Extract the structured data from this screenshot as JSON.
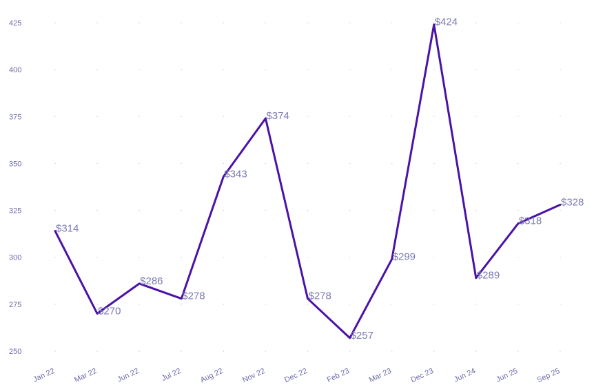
{
  "chart_data": {
    "type": "line",
    "title": "",
    "xlabel": "",
    "ylabel": "",
    "categories": [
      "Jan 22",
      "Mar 22",
      "Jun 22",
      "Jul 22",
      "Aug 22",
      "Nov 22",
      "Dec 22",
      "Feb 23",
      "Mar 23",
      "Dec 23",
      "Jun 24",
      "Jun 25",
      "Sep 25"
    ],
    "series": [
      {
        "values": [
          314,
          270,
          286,
          278,
          343,
          374,
          278,
          257,
          299,
          424,
          289,
          318,
          328
        ]
      }
    ],
    "data_labels": [
      "$314",
      "$270",
      "$286",
      "$278",
      "$343",
      "$374",
      "$278",
      "$257",
      "$299",
      "$424",
      "$289",
      "$318",
      "$328"
    ],
    "yticks": [
      "250",
      "275",
      "300",
      "325",
      "350",
      "375",
      "400",
      "425"
    ],
    "ylim": [
      250,
      425
    ],
    "grid": "dotted",
    "legend": "none",
    "colors": {
      "line": "#4a12a6",
      "labels": "#7a7ab4",
      "ticks": "#6a6aa8",
      "grid": "#d4d4d4"
    }
  }
}
